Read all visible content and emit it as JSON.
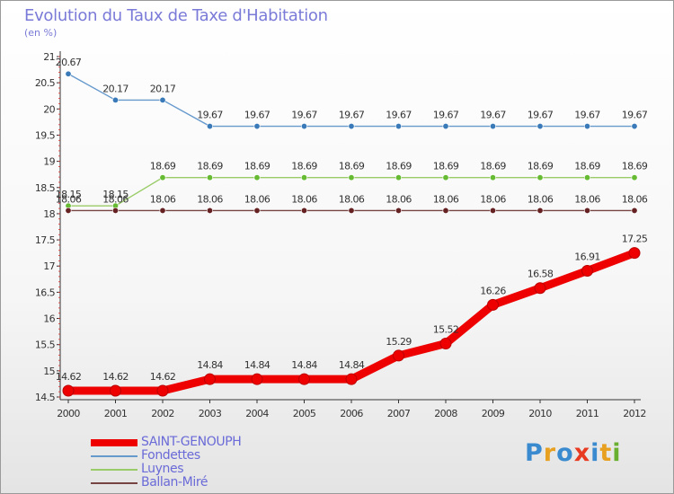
{
  "chart_data": {
    "type": "line",
    "title": "Evolution du Taux de Taxe d'Habitation",
    "unit_label": "(en %)",
    "xlabel": "",
    "ylabel": "",
    "categories": [
      "2000",
      "2001",
      "2002",
      "2003",
      "2004",
      "2005",
      "2006",
      "2007",
      "2008",
      "2009",
      "2010",
      "2011",
      "2012"
    ],
    "ylim": [
      14.5,
      21
    ],
    "yticks": [
      "14.5",
      "15",
      "15.5",
      "16",
      "16.5",
      "17",
      "17.5",
      "18",
      "18.5",
      "19",
      "19.5",
      "20",
      "20.5",
      "21"
    ],
    "series": [
      {
        "name": "SAINT-GENOUPH",
        "color": "#ee0000",
        "emphasis": true,
        "values": [
          14.62,
          14.62,
          14.62,
          14.84,
          14.84,
          14.84,
          14.84,
          15.29,
          15.52,
          16.26,
          16.58,
          16.91,
          17.25
        ],
        "labels": [
          "14.62",
          "14.62",
          "14.62",
          "14.84",
          "14.84",
          "14.84",
          "14.84",
          "15.29",
          "15.52",
          "16.26",
          "16.58",
          "16.91",
          "17.25"
        ]
      },
      {
        "name": "Fondettes",
        "color": "#6699cc",
        "marker_color": "#3a7ab8",
        "emphasis": false,
        "values": [
          20.67,
          20.17,
          20.17,
          19.67,
          19.67,
          19.67,
          19.67,
          19.67,
          19.67,
          19.67,
          19.67,
          19.67,
          19.67
        ],
        "labels": [
          "20.67",
          "20.17",
          "20.17",
          "19.67",
          "19.67",
          "19.67",
          "19.67",
          "19.67",
          "19.67",
          "19.67",
          "19.67",
          "19.67",
          "19.67"
        ]
      },
      {
        "name": "Luynes",
        "color": "#99cc66",
        "marker_color": "#66bb33",
        "emphasis": false,
        "values": [
          18.15,
          18.15,
          18.69,
          18.69,
          18.69,
          18.69,
          18.69,
          18.69,
          18.69,
          18.69,
          18.69,
          18.69,
          18.69
        ],
        "labels": [
          "18.15",
          "18.15",
          "18.69",
          "18.69",
          "18.69",
          "18.69",
          "18.69",
          "18.69",
          "18.69",
          "18.69",
          "18.69",
          "18.69",
          "18.69"
        ]
      },
      {
        "name": "Ballan-Miré",
        "color": "#774444",
        "marker_color": "#662222",
        "emphasis": false,
        "values": [
          18.06,
          18.06,
          18.06,
          18.06,
          18.06,
          18.06,
          18.06,
          18.06,
          18.06,
          18.06,
          18.06,
          18.06,
          18.06
        ],
        "labels": [
          "18.06",
          "18.06",
          "18.06",
          "18.06",
          "18.06",
          "18.06",
          "18.06",
          "18.06",
          "18.06",
          "18.06",
          "18.06",
          "18.06",
          "18.06"
        ]
      }
    ],
    "legend_position": "bottom-left",
    "grid": false
  },
  "logo": {
    "text": "Proxiti",
    "letters": [
      "P",
      "r",
      "o",
      "x",
      "i",
      "t",
      "i"
    ],
    "colors": [
      "#3a8ad0",
      "#e8a020",
      "#3a8ad0",
      "#e83a20",
      "#3a8ad0",
      "#e8a020",
      "#6ab030"
    ]
  }
}
